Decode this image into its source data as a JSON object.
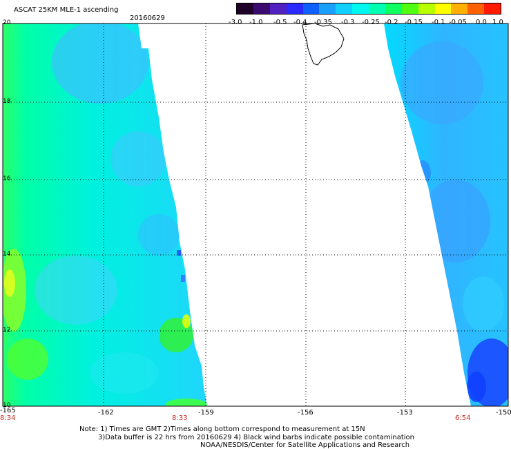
{
  "header": {
    "title": "ASCAT 25KM MLE-1 ascending",
    "date": "20160629"
  },
  "colorbar": {
    "labels": [
      "-3.0",
      "-1.0",
      "-0.5",
      "-0.4",
      "-0.35",
      "-0.3",
      "-0.25",
      "-0.2",
      "-0.15",
      "-0.1",
      "-0.05",
      "0.0",
      "1.0"
    ],
    "colors": [
      "#2a0030",
      "#4a10a0",
      "#1e1eff",
      "#1a5cff",
      "#1fa0ff",
      "#00ddff",
      "#00ffd0",
      "#20ff80",
      "#40ff20",
      "#a8ff00",
      "#ffff00",
      "#ff9000",
      "#ff2000"
    ]
  },
  "axes": {
    "x_ticks": [
      "-165",
      "-162",
      "-159",
      "-156",
      "-153",
      "-150"
    ],
    "y_ticks": [
      "20",
      "18",
      "16",
      "14",
      "12",
      "10"
    ]
  },
  "time_labels": [
    "8:34",
    "8:33",
    "6:54"
  ],
  "footer": {
    "note1": "Note: 1) Times are GMT 2)Times along bottom correspond to measurement at 15N",
    "note2": "3)Data buffer is 22 hrs from 20160629 4) Black wind barbs indicate possible contamination",
    "credit": "NOAA/NESDIS/Center for Satellite Applications and Research"
  }
}
